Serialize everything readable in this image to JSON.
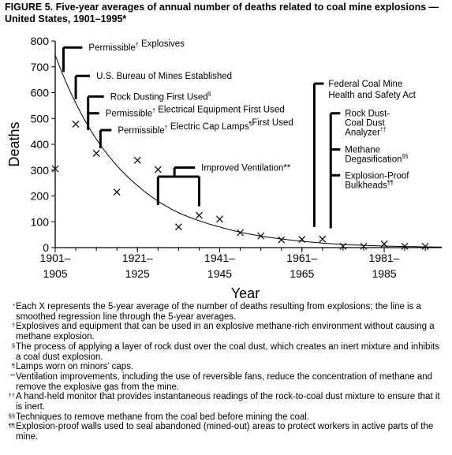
{
  "figure": {
    "title": "FIGURE 5. Five-year averages of annual number of deaths related to coal mine explosions — United States, 1901–1995*"
  },
  "chart_data": {
    "type": "scatter",
    "title": "FIGURE 5. Five-year averages of annual number of deaths related to coal mine explosions — United States, 1901–1995*",
    "xlabel": "Year",
    "ylabel": "Deaths",
    "ylim": [
      0,
      800
    ],
    "yticks": [
      0,
      100,
      200,
      300,
      400,
      500,
      600,
      700,
      800
    ],
    "xlim": [
      1901,
      1995
    ],
    "xticks": [
      {
        "year": 1901,
        "line1": "1901–",
        "line2": "1905"
      },
      {
        "year": 1921,
        "line1": "1921–",
        "line2": "1925"
      },
      {
        "year": 1941,
        "line1": "1941–",
        "line2": "1945"
      },
      {
        "year": 1961,
        "line1": "1961–",
        "line2": "1965"
      },
      {
        "year": 1981,
        "line1": "1981–",
        "line2": "1985"
      }
    ],
    "grid": false,
    "points": [
      {
        "x": 1901,
        "y": 305
      },
      {
        "x": 1906,
        "y": 478
      },
      {
        "x": 1911,
        "y": 365
      },
      {
        "x": 1916,
        "y": 215
      },
      {
        "x": 1921,
        "y": 338
      },
      {
        "x": 1926,
        "y": 302
      },
      {
        "x": 1931,
        "y": 80
      },
      {
        "x": 1936,
        "y": 125
      },
      {
        "x": 1941,
        "y": 110
      },
      {
        "x": 1946,
        "y": 58
      },
      {
        "x": 1951,
        "y": 45
      },
      {
        "x": 1956,
        "y": 30
      },
      {
        "x": 1961,
        "y": 32
      },
      {
        "x": 1966,
        "y": 33
      },
      {
        "x": 1971,
        "y": 5
      },
      {
        "x": 1976,
        "y": 5
      },
      {
        "x": 1981,
        "y": 14
      },
      {
        "x": 1986,
        "y": 5
      },
      {
        "x": 1991,
        "y": 5
      }
    ],
    "regression_curve": {
      "type": "exponential",
      "fit": [
        {
          "x": 1901,
          "y": 745
        },
        {
          "x": 1911,
          "y": 420
        },
        {
          "x": 1921,
          "y": 240
        },
        {
          "x": 1931,
          "y": 135
        },
        {
          "x": 1941,
          "y": 80
        },
        {
          "x": 1961,
          "y": 25
        },
        {
          "x": 1991,
          "y": 3
        }
      ]
    },
    "annotations": [
      {
        "text": "Permissible",
        "mark": "†",
        "text2": " Explosives",
        "x": 1903,
        "y_top": 775,
        "y_bottom": 680
      },
      {
        "text": "U.S. Bureau of Mines Established",
        "mark": "",
        "text2": "",
        "x": 1906,
        "y_top": 665,
        "y_bottom": 575
      },
      {
        "text": "Rock Dusting First Used",
        "mark": "§",
        "text2": "",
        "x": 1909,
        "y_top": 585,
        "y_bottom": 455
      },
      {
        "text": "Permissible",
        "mark": "†",
        "text2": " Electrical Equipment First Used",
        "x": 1909,
        "y_top": 520,
        "y_bottom": 455
      },
      {
        "text": "Permissible",
        "mark": "†",
        "text2": " Electric Cap Lamps",
        "mark2": "¶",
        "text3": "First Used",
        "x": 1912,
        "y_top": 455,
        "y_bottom": 385
      },
      {
        "text": "Improved Ventilation**",
        "mark": "",
        "text2": "",
        "x": 1930,
        "y_top": 310,
        "y_bottom": 275
      },
      {
        "text": "Federal Coal Mine",
        "text_line2": "Health and Safety Act",
        "x": 1964,
        "y_top": 635,
        "y_bottom": 80
      },
      {
        "text": "Rock Dust-",
        "text_line2": "Coal Dust",
        "text_line3": "Analyzer",
        "mark": "††",
        "x": 1968,
        "y_top": 520,
        "y_bottom": 75
      },
      {
        "text": "Methane",
        "text_line2": "Degasification",
        "mark": "§§",
        "x": 1968,
        "y_top": 380
      },
      {
        "text": "Explosion-Proof",
        "text_line2": "Bulkheads",
        "mark": "¶¶",
        "x": 1968,
        "y_top": 280
      }
    ]
  },
  "footnotes": [
    {
      "mark": "*",
      "text": "Each X represents the 5-year average of the number of deaths resulting from explosions; the line is a smoothed regression line through the 5-year averages."
    },
    {
      "mark": "†",
      "text": "Explosives and equipment that can be used in an explosive methane-rich environment without causing a methane explosion."
    },
    {
      "mark": "§",
      "text": "The process of applying a layer of rock dust over the coal dust, which creates an inert mixture and inhibits a coal dust explosion."
    },
    {
      "mark": "¶",
      "text": "Lamps worn on minors’ caps."
    },
    {
      "mark": "**",
      "text": "Ventilation improvements, including the use of reversible fans, reduce the concentration of methane and remove the explosive gas from the mine."
    },
    {
      "mark": "††",
      "text": "A hand-held monitor that provides instantaneous readings of the rock-to-coal dust mixture to ensure that it is inert."
    },
    {
      "mark": "§§",
      "text": "Techniques to remove methane from the coal bed before mining the coal."
    },
    {
      "mark": "¶¶",
      "text": "Explosion-proof walls used to seal abandoned (mined-out) areas to protect workers in active parts of the mine."
    }
  ]
}
